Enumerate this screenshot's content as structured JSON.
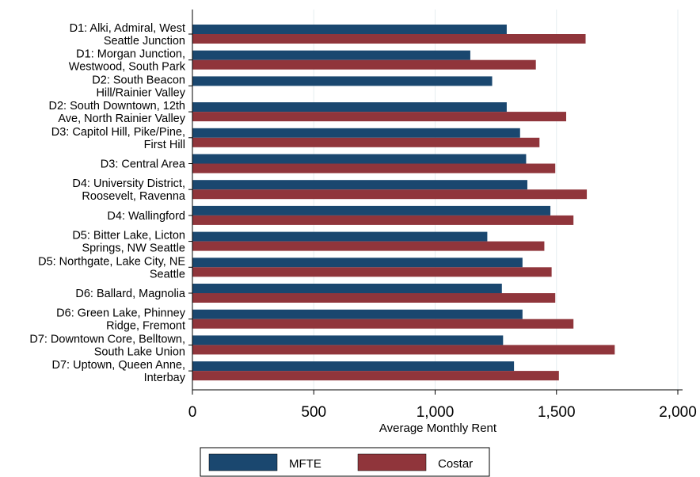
{
  "chart_data": {
    "type": "bar",
    "orientation": "horizontal",
    "categories": [
      [
        "D1: Alki, Admiral, West",
        "Seattle Junction"
      ],
      [
        "D1: Morgan Junction,",
        "Westwood, South Park"
      ],
      [
        "D2: South Beacon",
        "Hill/Rainier Valley"
      ],
      [
        "D2: South Downtown, 12th",
        "Ave, North Rainier Valley"
      ],
      [
        "D3: Capitol Hill, Pike/Pine,",
        "First Hill"
      ],
      [
        "D3: Central Area"
      ],
      [
        "D4: University District,",
        "Roosevelt, Ravenna"
      ],
      [
        "D4: Wallingford"
      ],
      [
        "D5: Bitter Lake, Licton",
        "Springs, NW Seattle"
      ],
      [
        "D5: Northgate, Lake City, NE",
        "Seattle"
      ],
      [
        "D6: Ballard, Magnolia"
      ],
      [
        "D6: Green Lake, Phinney",
        "Ridge, Fremont"
      ],
      [
        "D7: Downtown Core, Belltown,",
        "South Lake Union"
      ],
      [
        "D7: Uptown, Queen Anne,",
        "Interbay"
      ]
    ],
    "series": [
      {
        "name": "MFTE",
        "color": "#1a476f",
        "values": [
          1295,
          1145,
          1235,
          1295,
          1350,
          1375,
          1380,
          1475,
          1215,
          1360,
          1275,
          1360,
          1280,
          1325
        ]
      },
      {
        "name": "Costar",
        "color": "#90353b",
        "values": [
          1620,
          1415,
          null,
          1540,
          1430,
          1495,
          1625,
          1570,
          1450,
          1480,
          1495,
          1570,
          1740,
          1510
        ]
      }
    ],
    "xlabel": "Average Monthly Rent",
    "xlim": [
      0,
      2000
    ],
    "xticks": [
      0,
      500,
      1000,
      1500,
      2000
    ],
    "xtick_labels": [
      "0",
      "500",
      "1,000",
      "1,500",
      "2,000"
    ],
    "grid": "vertical",
    "legend_position": "bottom"
  }
}
